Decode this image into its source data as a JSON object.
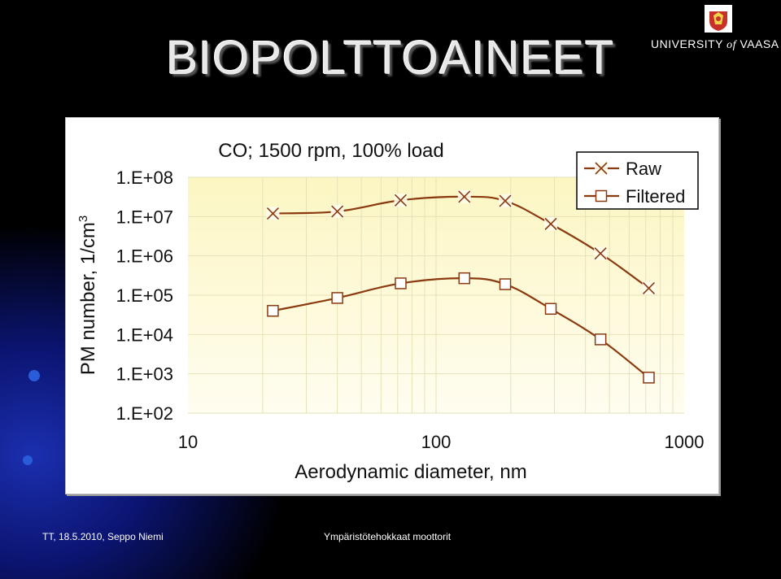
{
  "slide": {
    "title": "BIOPOLTTOAINEET",
    "university": {
      "prefix": "UNIVERSITY",
      "of": "of",
      "name": "VAASA"
    },
    "footer_left": "TT, 18.5.2010, Seppo Niemi",
    "footer_right": "Ympäristötehokkaat moottorit",
    "logo_icon": "university-crest-icon"
  },
  "colors": {
    "background": "#000000",
    "plot_bg": "#fdf9d6",
    "series": "#8b3a0f",
    "accent_blue": "#2a5bd8"
  },
  "chart_data": {
    "type": "line",
    "title": "CO; 1500 rpm, 100% load",
    "xlabel": "Aerodynamic diameter, nm",
    "ylabel": "PM number, 1/cm",
    "ylabel_superscript": "3",
    "x_scale": "log",
    "y_scale": "log",
    "xlim": [
      10,
      1000
    ],
    "ylim": [
      100,
      100000000
    ],
    "x_ticks": [
      {
        "value": 10,
        "label": "10"
      },
      {
        "value": 100,
        "label": "100"
      },
      {
        "value": 1000,
        "label": "1000"
      }
    ],
    "y_ticks": [
      {
        "value": 100,
        "label": "1.E+02"
      },
      {
        "value": 1000,
        "label": "1.E+03"
      },
      {
        "value": 10000,
        "label": "1.E+04"
      },
      {
        "value": 100000,
        "label": "1.E+05"
      },
      {
        "value": 1000000,
        "label": "1.E+06"
      },
      {
        "value": 10000000,
        "label": "1.E+07"
      },
      {
        "value": 100000000,
        "label": "1.E+08"
      }
    ],
    "legend_position": "top-right",
    "series": [
      {
        "name": "Raw",
        "marker": "x",
        "points": [
          {
            "x": 22,
            "y": 12000000
          },
          {
            "x": 40,
            "y": 13500000
          },
          {
            "x": 72,
            "y": 26000000
          },
          {
            "x": 130,
            "y": 32000000
          },
          {
            "x": 190,
            "y": 25000000
          },
          {
            "x": 290,
            "y": 6500000
          },
          {
            "x": 460,
            "y": 1150000
          },
          {
            "x": 720,
            "y": 150000
          }
        ]
      },
      {
        "name": "Filtered",
        "marker": "square",
        "points": [
          {
            "x": 22,
            "y": 40000
          },
          {
            "x": 40,
            "y": 85000
          },
          {
            "x": 72,
            "y": 200000
          },
          {
            "x": 130,
            "y": 270000
          },
          {
            "x": 190,
            "y": 190000
          },
          {
            "x": 290,
            "y": 45000
          },
          {
            "x": 460,
            "y": 7500
          },
          {
            "x": 720,
            "y": 800
          }
        ]
      }
    ]
  }
}
